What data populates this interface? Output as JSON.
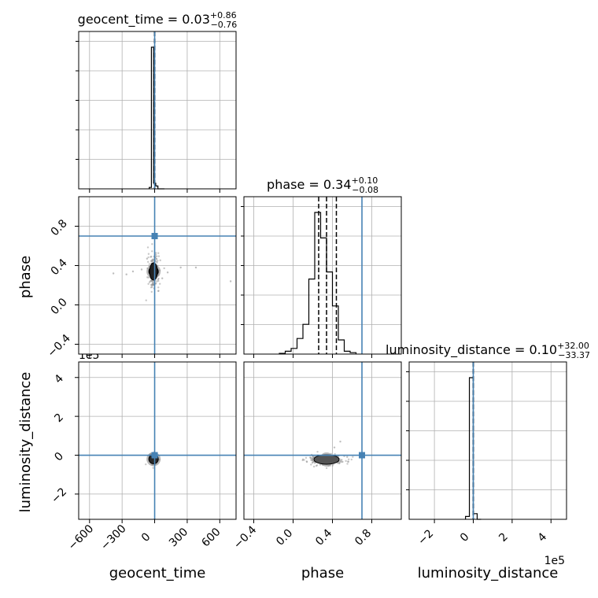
{
  "chart_data": {
    "type": "corner",
    "grid": true,
    "parameters": [
      "geocent_time",
      "phase",
      "luminosity_distance"
    ],
    "axis_labels": {
      "geocent_time": "geocent_time",
      "phase": "phase",
      "luminosity_distance": "luminosity_distance"
    },
    "ranges": {
      "geocent_time": [
        -700,
        750
      ],
      "phase": [
        -0.5,
        1.1
      ],
      "luminosity_distance": [
        -330000,
        480000
      ]
    },
    "ticks": {
      "geocent_time": [
        -600,
        -300,
        0,
        300,
        600
      ],
      "phase": [
        -0.4,
        0.0,
        0.4,
        0.8
      ],
      "luminosity_distance": [
        -200000,
        0,
        200000,
        400000
      ]
    },
    "tick_labels": {
      "geocent_time": [
        "−600",
        "−300",
        "0",
        "300",
        "600"
      ],
      "phase": [
        "−0.4",
        "0.0",
        "0.4",
        "0.8"
      ],
      "luminosity_distance": [
        "−2",
        "0",
        "2",
        "4"
      ]
    },
    "offset_text": "1e5",
    "titles": [
      {
        "param": "geocent_time",
        "prefix": "geocent_time = ",
        "median": "0.03",
        "plus": "+0.86",
        "minus": "−0.76"
      },
      {
        "param": "phase",
        "prefix": "phase = ",
        "median": "0.34",
        "plus": "+0.10",
        "minus": "−0.08"
      },
      {
        "param": "luminosity_distance",
        "prefix": "luminosity_distance = ",
        "median": "0.10",
        "plus": "+32.00",
        "minus": "−33.37"
      }
    ],
    "truths": {
      "geocent_time": 0,
      "phase": 0.7,
      "luminosity_distance": 0
    },
    "quantiles": {
      "geocent_time": [
        -0.73,
        0.03,
        0.89
      ],
      "phase": [
        0.26,
        0.34,
        0.44
      ],
      "luminosity_distance": [
        -33.27,
        0.1,
        32.1
      ]
    },
    "histograms": {
      "geocent_time": {
        "edges": [
          -50,
          -30,
          -10,
          10,
          30,
          50,
          70,
          90
        ],
        "counts": [
          0.01,
          1.0,
          0.04,
          0.02,
          0.0,
          0.0,
          0.0
        ]
      },
      "phase": {
        "edges": [
          -0.14,
          -0.08,
          -0.02,
          0.04,
          0.1,
          0.16,
          0.22,
          0.28,
          0.34,
          0.4,
          0.46,
          0.52,
          0.58,
          0.64
        ],
        "counts": [
          0.005,
          0.02,
          0.04,
          0.11,
          0.21,
          0.53,
          1.0,
          0.82,
          0.58,
          0.34,
          0.1,
          0.02,
          0.01
        ]
      },
      "luminosity_distance": {
        "edges": [
          -40000,
          -20000,
          0,
          20000,
          40000
        ],
        "counts": [
          0.02,
          1.0,
          0.04,
          0.0
        ]
      }
    },
    "scatter_2d": [
      {
        "x_param": "geocent_time",
        "y_param": "phase",
        "center": [
          -10,
          0.34
        ],
        "spread": [
          18,
          0.06
        ],
        "outliers": [
          [
            -380,
            0.32
          ],
          [
            -260,
            0.31
          ],
          [
            -200,
            0.34
          ],
          [
            -120,
            0.36
          ],
          [
            120,
            0.33
          ],
          [
            240,
            0.38
          ],
          [
            380,
            0.38
          ],
          [
            700,
            0.24
          ],
          [
            -70,
            0.47
          ],
          [
            70,
            0.27
          ]
        ]
      },
      {
        "x_param": "geocent_time",
        "y_param": "luminosity_distance",
        "center": [
          -10,
          -20000
        ],
        "spread": [
          12,
          8000
        ],
        "outliers": []
      },
      {
        "x_param": "phase",
        "y_param": "luminosity_distance",
        "center": [
          0.34,
          -22000
        ],
        "spread": [
          0.07,
          10000
        ],
        "outliers": [
          [
            0.48,
            70000
          ],
          [
            0.42,
            40000
          ],
          [
            0.2,
            -8000
          ],
          [
            0.55,
            -9000
          ]
        ]
      }
    ]
  }
}
